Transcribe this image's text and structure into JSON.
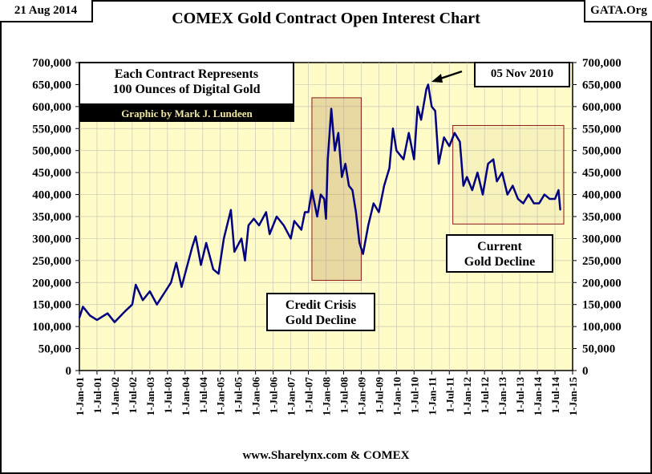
{
  "header": {
    "date": "21 Aug 2014",
    "site": "GATA.Org"
  },
  "chart_data": {
    "type": "line",
    "title": "COMEX Gold Contract Open Interest Chart",
    "source": "www.Sharelynx.com & COMEX",
    "xlabel": "",
    "ylabel": "",
    "ylim": [
      0,
      700000
    ],
    "y_ticks": [
      "0",
      "50,000",
      "100,000",
      "150,000",
      "200,000",
      "250,000",
      "300,000",
      "350,000",
      "400,000",
      "450,000",
      "500,000",
      "550,000",
      "600,000",
      "650,000",
      "700,000"
    ],
    "x_ticks": [
      "1-Jan-01",
      "1-Jul-01",
      "1-Jan-02",
      "1-Jul-02",
      "1-Jan-03",
      "1-Jul-03",
      "1-Jan-04",
      "1-Jul-04",
      "1-Jan-05",
      "1-Jul-05",
      "1-Jan-06",
      "1-Jul-06",
      "1-Jan-07",
      "1-Jul-07",
      "1-Jan-08",
      "1-Jul-08",
      "1-Jan-09",
      "1-Jul-09",
      "1-Jan-10",
      "1-Jul-10",
      "1-Jan-11",
      "1-Jul-11",
      "1-Jan-12",
      "1-Jul-12",
      "1-Jan-13",
      "1-Jul-13",
      "1-Jan-14",
      "1-Jul-14",
      "1-Jan-15"
    ],
    "xlim_years": [
      2001,
      2015
    ],
    "grid": true,
    "series": [
      {
        "name": "Open Interest",
        "color": "#000080",
        "x": [
          2001.0,
          2001.1,
          2001.3,
          2001.5,
          2001.8,
          2002.0,
          2002.3,
          2002.5,
          2002.6,
          2002.8,
          2003.0,
          2003.2,
          2003.4,
          2003.6,
          2003.75,
          2003.9,
          2004.0,
          2004.2,
          2004.3,
          2004.45,
          2004.6,
          2004.8,
          2004.95,
          2005.1,
          2005.3,
          2005.4,
          2005.6,
          2005.7,
          2005.8,
          2005.95,
          2006.1,
          2006.3,
          2006.4,
          2006.6,
          2006.8,
          2007.0,
          2007.1,
          2007.3,
          2007.4,
          2007.5,
          2007.6,
          2007.75,
          2007.85,
          2007.95,
          2008.0,
          2008.05,
          2008.15,
          2008.25,
          2008.35,
          2008.45,
          2008.55,
          2008.65,
          2008.75,
          2008.85,
          2008.95,
          2009.05,
          2009.2,
          2009.35,
          2009.5,
          2009.65,
          2009.8,
          2009.9,
          2010.0,
          2010.2,
          2010.35,
          2010.5,
          2010.6,
          2010.7,
          2010.85,
          2010.9,
          2011.0,
          2011.1,
          2011.2,
          2011.35,
          2011.5,
          2011.65,
          2011.8,
          2011.9,
          2012.0,
          2012.15,
          2012.3,
          2012.45,
          2012.6,
          2012.75,
          2012.85,
          2013.0,
          2013.15,
          2013.3,
          2013.45,
          2013.6,
          2013.75,
          2013.9,
          2014.05,
          2014.2,
          2014.35,
          2014.5,
          2014.6,
          2014.65
        ],
        "values": [
          120000,
          145000,
          125000,
          115000,
          130000,
          110000,
          135000,
          150000,
          195000,
          160000,
          180000,
          150000,
          175000,
          200000,
          245000,
          190000,
          220000,
          280000,
          305000,
          240000,
          290000,
          230000,
          220000,
          300000,
          365000,
          270000,
          300000,
          250000,
          330000,
          345000,
          330000,
          360000,
          310000,
          350000,
          330000,
          300000,
          340000,
          320000,
          360000,
          360000,
          410000,
          350000,
          400000,
          390000,
          345000,
          480000,
          595000,
          500000,
          540000,
          440000,
          470000,
          420000,
          410000,
          360000,
          290000,
          265000,
          330000,
          380000,
          360000,
          420000,
          460000,
          550000,
          500000,
          480000,
          540000,
          480000,
          600000,
          570000,
          640000,
          650000,
          600000,
          590000,
          470000,
          530000,
          510000,
          540000,
          520000,
          420000,
          440000,
          410000,
          450000,
          400000,
          470000,
          480000,
          430000,
          450000,
          400000,
          420000,
          390000,
          380000,
          400000,
          380000,
          380000,
          400000,
          390000,
          390000,
          410000,
          365000
        ]
      }
    ],
    "annotations": [
      {
        "text": "Each Contract Represents",
        "text2": "100 Ounces of Digital Gold"
      },
      {
        "text": "Graphic by Mark J. Lundeen"
      },
      {
        "text": "05 Nov 2010",
        "points_to_year": 2010.85,
        "points_to_value": 650000
      },
      {
        "text": "Credit Crisis",
        "text2": "Gold Decline",
        "x_range": [
          2007.6,
          2009.0
        ],
        "y_range": [
          205000,
          620000
        ]
      },
      {
        "text": "Current",
        "text2": "Gold Decline",
        "x_range": [
          2011.6,
          2014.75
        ],
        "y_range": [
          333000,
          557000
        ]
      }
    ]
  }
}
